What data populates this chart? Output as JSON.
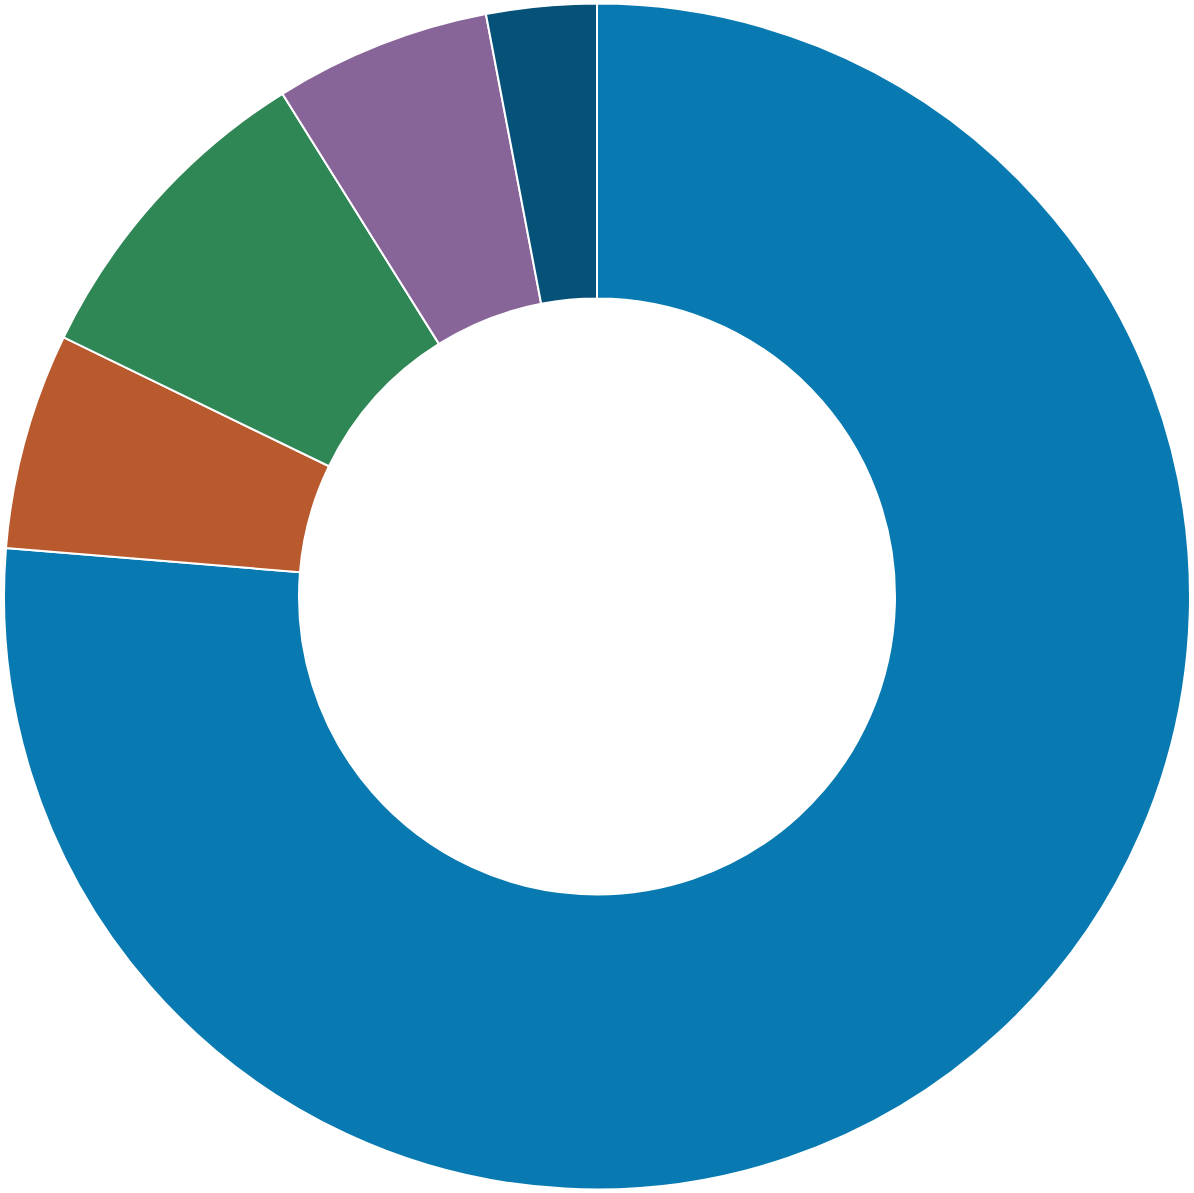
{
  "chart_data": {
    "type": "donut",
    "categories": [
      null,
      null,
      null,
      null,
      null
    ],
    "values": [
      76.3,
      5.9,
      8.9,
      5.9,
      3.0
    ],
    "colors": [
      "#087ab1",
      "#b85a2e",
      "#2e8755",
      "#886598",
      "#065178"
    ]
  }
}
